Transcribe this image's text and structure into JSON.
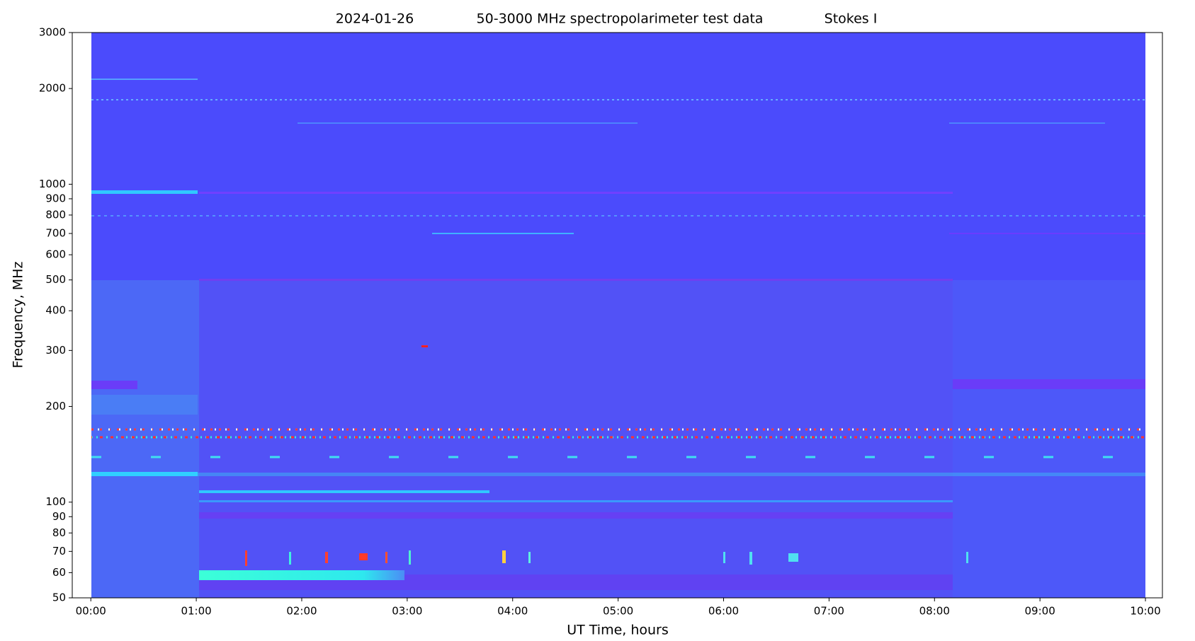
{
  "chart_data": {
    "type": "spectrogram",
    "title": [
      "2024-01-26",
      "50-3000 MHz spectropolarimeter test data",
      "Stokes I"
    ],
    "xlabel": "UT Time, hours",
    "ylabel": "Frequency, MHz",
    "xlim": [
      -0.176,
      10.161
    ],
    "xticks": [
      {
        "value": 0,
        "label": "00:00"
      },
      {
        "value": 1,
        "label": "01:00"
      },
      {
        "value": 2,
        "label": "02:00"
      },
      {
        "value": 3,
        "label": "03:00"
      },
      {
        "value": 4,
        "label": "04:00"
      },
      {
        "value": 5,
        "label": "05:00"
      },
      {
        "value": 6,
        "label": "06:00"
      },
      {
        "value": 7,
        "label": "07:00"
      },
      {
        "value": 8,
        "label": "08:00"
      },
      {
        "value": 9,
        "label": "09:00"
      },
      {
        "value": 10,
        "label": "10:00"
      }
    ],
    "ylim": [
      50,
      3000
    ],
    "yscale": "log",
    "yticks": [
      50,
      60,
      70,
      80,
      90,
      100,
      200,
      300,
      400,
      500,
      600,
      700,
      800,
      900,
      1000,
      2000,
      3000
    ]
  }
}
